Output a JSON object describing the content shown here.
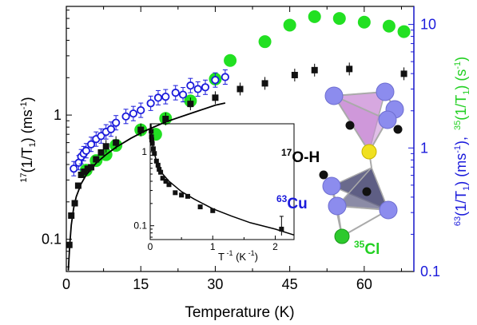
{
  "chart_data": [
    {
      "type": "scatter",
      "xlabel": "Temperature (K)",
      "ylabel_left": {
        "pre": "17",
        "a": "(1/T",
        "sub": "1",
        "b": ") (ms",
        "sup": "-1",
        "c": ")"
      },
      "ylabel_right": {
        "p1_pre": "63",
        "p1_a": "(1/T",
        "p1_sub": "1",
        "p1_b": ") (ms",
        "p1_sup": "-1",
        "p1_c": "),",
        "p2_pre": "35",
        "p2_a": "(1/T",
        "p2_sub": "1",
        "p2_b": ") (s",
        "p2_sup": "-1",
        "p2_c": ")"
      },
      "xlim": [
        0,
        70
      ],
      "ylim_left": [
        0.055,
        7.5
      ],
      "ylim_right": [
        0.1,
        14
      ],
      "yscale": "log",
      "x_ticks": [
        0,
        15,
        30,
        45,
        60
      ],
      "x_tick_labels": [
        "0",
        "15",
        "30",
        "45",
        "60"
      ],
      "y_left_ticks": [
        0.1,
        1
      ],
      "y_left_tick_labels": [
        "0.1",
        "1"
      ],
      "y_right_ticks": [
        0.1,
        1,
        10
      ],
      "y_right_tick_labels": [
        "0.1",
        "1",
        "10"
      ],
      "grid": false,
      "colors": {
        "o17": "#111111",
        "cu63": "#1a1adb",
        "cl35": "#22e022",
        "axis": "#000000"
      },
      "series": [
        {
          "marker": "filled-square",
          "axis": "left",
          "points": [
            [
              0.6,
              0.09
            ],
            [
              1.0,
              0.155
            ],
            [
              1.7,
              0.195
            ],
            [
              2.4,
              0.27
            ],
            [
              3.0,
              0.33
            ],
            [
              3.6,
              0.35
            ],
            [
              4.3,
              0.37
            ],
            [
              5.0,
              0.38
            ],
            [
              6.0,
              0.44
            ],
            [
              7.0,
              0.5
            ],
            [
              8.0,
              0.56
            ],
            [
              10.0,
              0.6
            ],
            [
              15.0,
              0.76
            ],
            [
              20.0,
              0.93
            ],
            [
              25.0,
              1.23
            ],
            [
              30.0,
              1.38
            ],
            [
              35.0,
              1.62
            ],
            [
              40.0,
              1.8
            ],
            [
              46.0,
              2.1
            ],
            [
              50.0,
              2.3
            ],
            [
              57.0,
              2.35
            ],
            [
              68.0,
              2.15
            ]
          ]
        },
        {
          "marker": "open-circle",
          "axis": "right",
          "points": [
            [
              1.5,
              0.68
            ],
            [
              2.5,
              0.76
            ],
            [
              3.0,
              0.85
            ],
            [
              3.5,
              0.9
            ],
            [
              4.0,
              0.95
            ],
            [
              5.0,
              1.07
            ],
            [
              6.0,
              1.18
            ],
            [
              7.0,
              1.25
            ],
            [
              8.0,
              1.35
            ],
            [
              9.0,
              1.42
            ],
            [
              10.0,
              1.6
            ],
            [
              12.0,
              1.8
            ],
            [
              13.5,
              1.9
            ],
            [
              15.0,
              2.02
            ],
            [
              17.0,
              2.3
            ],
            [
              18.5,
              2.55
            ],
            [
              20.0,
              2.6
            ],
            [
              22.0,
              2.8
            ],
            [
              23.5,
              2.7
            ],
            [
              25.0,
              3.2
            ],
            [
              26.5,
              3.0
            ],
            [
              28.0,
              3.1
            ],
            [
              30.0,
              3.55
            ],
            [
              32.0,
              3.75
            ]
          ]
        },
        {
          "marker": "filled-circle",
          "axis": "left",
          "points": [
            [
              4.0,
              0.36
            ],
            [
              6.0,
              0.43
            ],
            [
              8.0,
              0.48
            ],
            [
              10.0,
              0.57
            ],
            [
              15.0,
              0.76
            ],
            [
              18.0,
              0.7
            ],
            [
              20.0,
              0.94
            ],
            [
              25.0,
              1.3
            ],
            [
              30.0,
              1.95
            ],
            [
              33.0,
              2.75
            ],
            [
              40.0,
              3.9
            ],
            [
              45.0,
              5.3
            ],
            [
              50.0,
              6.2
            ],
            [
              55.0,
              6.0
            ],
            [
              60.0,
              5.6
            ],
            [
              65.0,
              5.2
            ],
            [
              68.0,
              4.7
            ]
          ]
        }
      ],
      "fit_curve": {
        "axis": "left",
        "points": [
          [
            0.4,
            0.056
          ],
          [
            0.7,
            0.09
          ],
          [
            1.0,
            0.13
          ],
          [
            1.5,
            0.18
          ],
          [
            2,
            0.22
          ],
          [
            3,
            0.28
          ],
          [
            4,
            0.33
          ],
          [
            6,
            0.41
          ],
          [
            8,
            0.48
          ],
          [
            10,
            0.55
          ],
          [
            13,
            0.65
          ],
          [
            16,
            0.75
          ],
          [
            20,
            0.88
          ],
          [
            25,
            1.03
          ],
          [
            30,
            1.2
          ],
          [
            32,
            1.25
          ]
        ]
      },
      "annotations": {
        "o17": {
          "sup": "17",
          "text": "O-H"
        },
        "cu63": {
          "sup": "63",
          "text": "Cu"
        },
        "cl35": {
          "sup": "35",
          "text": "Cl"
        }
      },
      "molecule": {
        "colors": {
          "cu": "#8c8cee",
          "cl": "#2dc92d",
          "s": "#f0e020",
          "o": "#111111",
          "upper_face": "#c98bd6",
          "lower_face": "#5a5a80",
          "bond": "#aaaaaa"
        }
      }
    },
    {
      "type": "scatter",
      "role": "inset",
      "xlabel": {
        "a": "T",
        "sup1": " -1",
        "b": " (K",
        "sup2": " -1",
        "c": ")"
      },
      "xlim": [
        0,
        2.3
      ],
      "ylim": [
        0.065,
        2.4
      ],
      "yscale": "log",
      "x_ticks": [
        0,
        1,
        2
      ],
      "x_tick_labels": [
        "0",
        "1",
        "2"
      ],
      "y_ticks": [
        0.1,
        1
      ],
      "y_tick_labels": [
        "0.1",
        "1"
      ],
      "series": [
        {
          "marker": "filled-square",
          "points": [
            [
              0.015,
              1.9
            ],
            [
              0.02,
              1.6
            ],
            [
              0.025,
              1.45
            ],
            [
              0.033,
              1.3
            ],
            [
              0.05,
              1.1
            ],
            [
              0.067,
              0.95
            ],
            [
              0.1,
              0.75
            ],
            [
              0.125,
              0.66
            ],
            [
              0.143,
              0.58
            ],
            [
              0.167,
              0.53
            ],
            [
              0.2,
              0.44
            ],
            [
              0.25,
              0.4
            ],
            [
              0.3,
              0.36
            ],
            [
              0.4,
              0.28
            ],
            [
              0.5,
              0.26
            ],
            [
              0.6,
              0.25
            ],
            [
              0.8,
              0.18
            ],
            [
              1.0,
              0.16
            ],
            [
              2.1,
              0.09
            ]
          ]
        }
      ],
      "fit_curve": {
        "points": [
          [
            0.01,
            2.4
          ],
          [
            0.03,
            1.4
          ],
          [
            0.06,
            1.0
          ],
          [
            0.1,
            0.75
          ],
          [
            0.2,
            0.5
          ],
          [
            0.3,
            0.4
          ],
          [
            0.5,
            0.29
          ],
          [
            0.7,
            0.23
          ],
          [
            1.0,
            0.17
          ],
          [
            1.3,
            0.135
          ],
          [
            1.6,
            0.11
          ],
          [
            2.0,
            0.09
          ],
          [
            2.3,
            0.075
          ]
        ]
      }
    }
  ]
}
